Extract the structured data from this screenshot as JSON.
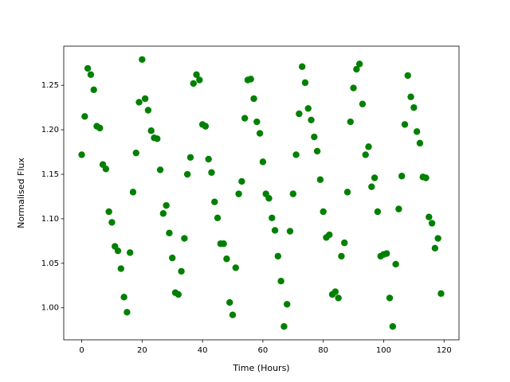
{
  "chart_data": {
    "type": "scatter",
    "xlabel": "Time (Hours)",
    "ylabel": "Normalised Flux",
    "color": "#008000",
    "xlim": [
      -5.95,
      124.95
    ],
    "ylim": [
      0.964,
      1.294
    ],
    "xticks": [
      0,
      20,
      40,
      60,
      80,
      100,
      120
    ],
    "yticks": [
      {
        "value": 1,
        "label": "1.00"
      },
      1.05,
      {
        "value": 1.1,
        "label": "1.10"
      },
      1.15,
      {
        "value": 1.2,
        "label": "1.20"
      },
      1.25
    ],
    "x": [
      0,
      1,
      2,
      3,
      4,
      5,
      6,
      7,
      8,
      9,
      10,
      11,
      12,
      13,
      14,
      15,
      16,
      17,
      18,
      19,
      20,
      21,
      22,
      23,
      24,
      25,
      26,
      27,
      28,
      29,
      30,
      31,
      32,
      33,
      34,
      35,
      36,
      37,
      38,
      39,
      40,
      41,
      42,
      43,
      44,
      45,
      46,
      47,
      48,
      49,
      50,
      51,
      52,
      53,
      54,
      55,
      56,
      57,
      58,
      59,
      60,
      61,
      62,
      63,
      64,
      65,
      66,
      67,
      68,
      69,
      70,
      71,
      72,
      73,
      74,
      75,
      76,
      77,
      78,
      79,
      80,
      81,
      82,
      83,
      84,
      85,
      86,
      87,
      88,
      89,
      90,
      91,
      92,
      93,
      94,
      95,
      96,
      97,
      98,
      99,
      100,
      101,
      102,
      103,
      104,
      105,
      106,
      107,
      108,
      109,
      110,
      111,
      112,
      113,
      114,
      115,
      116,
      117,
      118,
      119
    ],
    "values": [
      1.172,
      1.215,
      1.269,
      1.262,
      1.245,
      1.204,
      1.202,
      1.161,
      1.156,
      1.108,
      1.096,
      1.069,
      1.064,
      1.044,
      1.012,
      0.995,
      1.062,
      1.13,
      1.174,
      1.231,
      1.279,
      1.235,
      1.222,
      1.199,
      1.191,
      1.19,
      1.155,
      1.106,
      1.115,
      1.084,
      1.056,
      1.017,
      1.015,
      1.041,
      1.078,
      1.15,
      1.169,
      1.252,
      1.262,
      1.256,
      1.206,
      1.204,
      1.167,
      1.152,
      1.119,
      1.101,
      1.072,
      1.072,
      1.055,
      1.006,
      0.992,
      1.045,
      1.128,
      1.142,
      1.213,
      1.256,
      1.257,
      1.235,
      1.209,
      1.196,
      1.164,
      1.128,
      1.123,
      1.101,
      1.087,
      1.058,
      1.03,
      0.979,
      1.004,
      1.086,
      1.128,
      1.172,
      1.218,
      1.271,
      1.253,
      1.224,
      1.211,
      1.192,
      1.176,
      1.144,
      1.108,
      1.079,
      1.082,
      1.015,
      1.018,
      1.011,
      1.058,
      1.073,
      1.13,
      1.209,
      1.247,
      1.268,
      1.274,
      1.229,
      1.172,
      1.181,
      1.136,
      1.146,
      1.108,
      1.058,
      1.06,
      1.061,
      1.011,
      0.979,
      1.049,
      1.111,
      1.148,
      1.206,
      1.261,
      1.237,
      1.225,
      1.198,
      1.185,
      1.147,
      1.146,
      1.102,
      1.095,
      1.067,
      1.078,
      1.016
    ]
  }
}
